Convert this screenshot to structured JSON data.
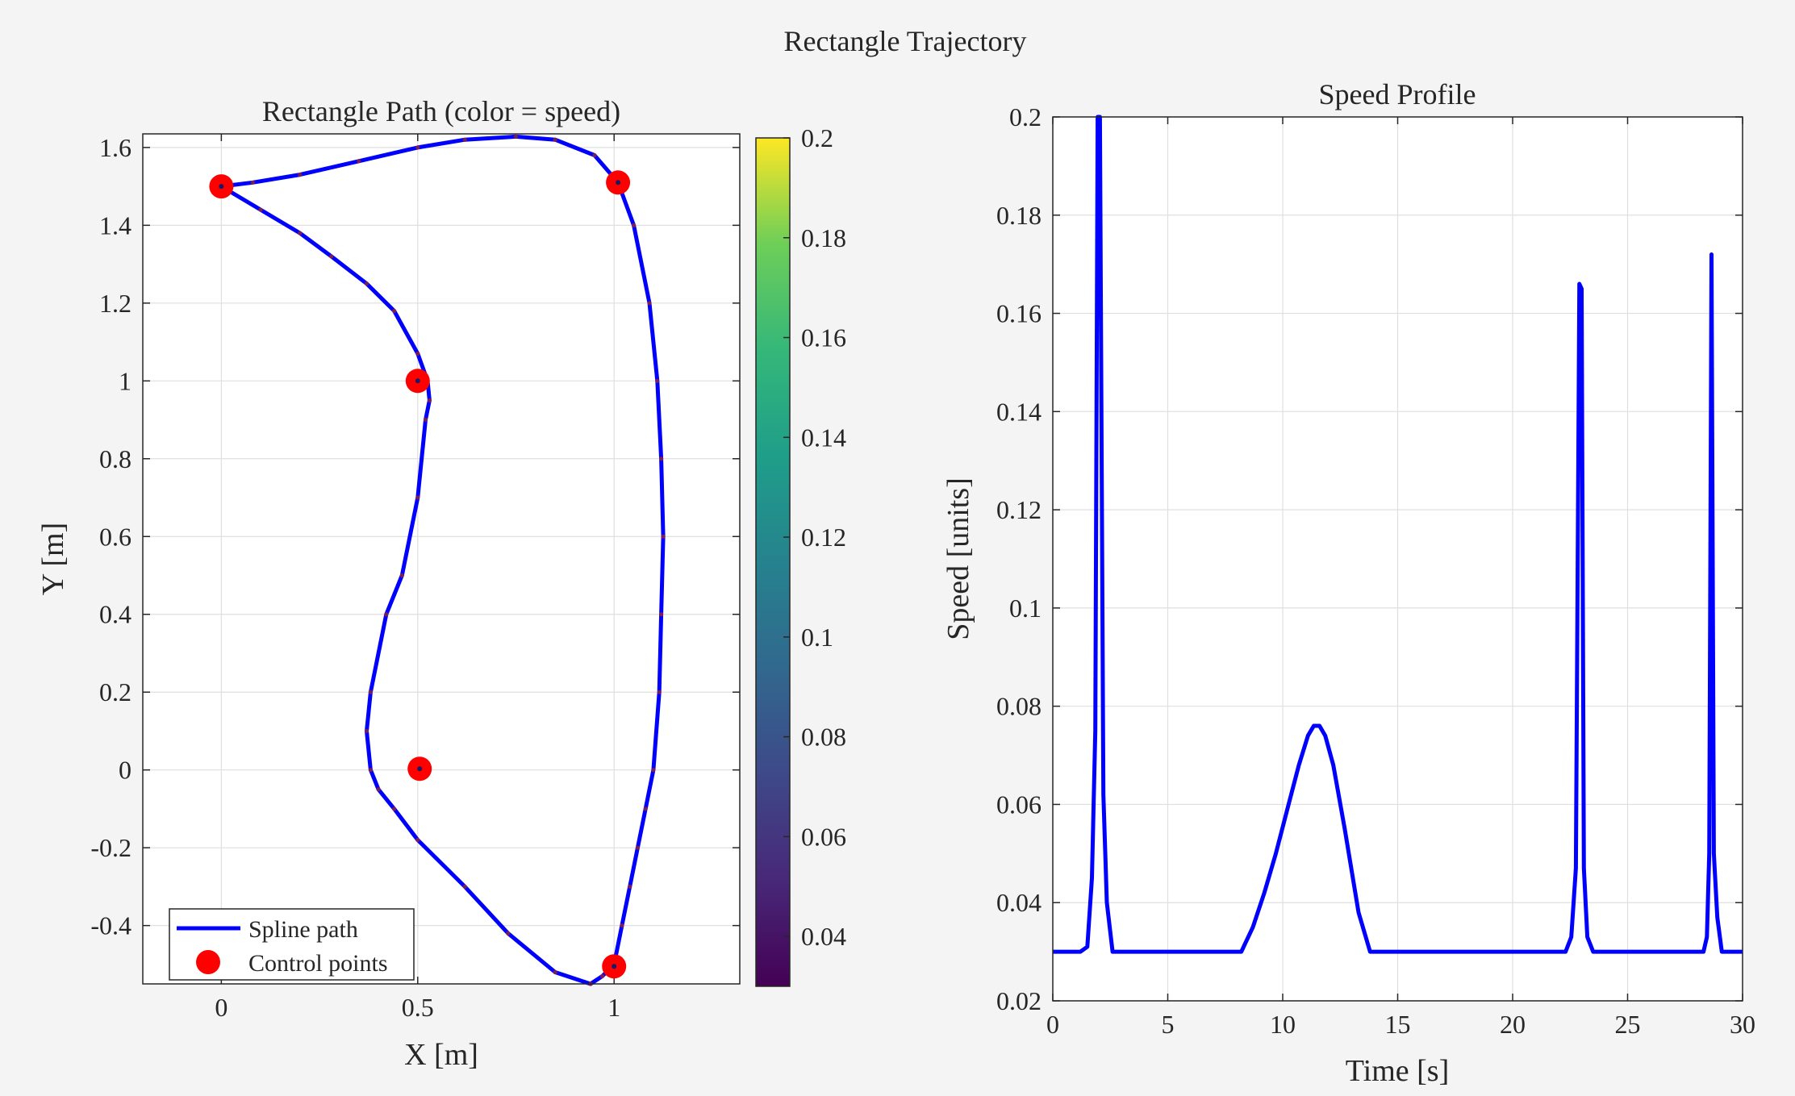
{
  "figure": {
    "title": "Rectangle Trajectory"
  },
  "colors": {
    "background": "#f4f4f4",
    "path_line": "#0000ff",
    "control_points": "#ff0000",
    "grid": "#dfdfdf",
    "axes": "#262626"
  },
  "chart_data": [
    {
      "type": "line",
      "title": "Rectangle Path (color = speed)",
      "xlabel": "X [m]",
      "ylabel": "Y [m]",
      "xlim": [
        -0.2,
        1.32
      ],
      "ylim": [
        -0.55,
        1.635
      ],
      "xticks": [
        0,
        0.5,
        1
      ],
      "xtick_labels": [
        "0",
        "0.5",
        "1"
      ],
      "yticks": [
        -0.4,
        -0.2,
        0,
        0.2,
        0.4,
        0.6,
        0.8,
        1,
        1.2,
        1.4,
        1.6
      ],
      "ytick_labels": [
        "-0.4",
        "-0.2",
        "0",
        "0.2",
        "0.4",
        "0.6",
        "0.8",
        "1",
        "1.2",
        "1.4",
        "1.6"
      ],
      "grid": true,
      "legend": {
        "placement": "bottom-left",
        "entries": [
          "Spline path",
          "Control points"
        ]
      },
      "colorbar": {
        "colormap": "viridis",
        "range": [
          0.03,
          0.2
        ],
        "ticks": [
          0.04,
          0.06,
          0.08,
          0.1,
          0.12,
          0.14,
          0.16,
          0.18,
          0.2
        ],
        "tick_labels": [
          "0.04",
          "0.06",
          "0.08",
          "0.1",
          "0.12",
          "0.14",
          "0.16",
          "0.18",
          "0.2"
        ]
      },
      "series": [
        {
          "name": "Spline path",
          "x": [
            0,
            0.08,
            0.2,
            0.35,
            0.5,
            0.62,
            0.75,
            0.85,
            0.95,
            1.01,
            1.05,
            1.09,
            1.11,
            1.12,
            1.125,
            1.12,
            1.115,
            1.1,
            1.08,
            1.06,
            1.04,
            1.02,
            1.0,
            0.97,
            0.94,
            0.85,
            0.73,
            0.62,
            0.5,
            0.44,
            0.4,
            0.38,
            0.37,
            0.38,
            0.42,
            0.46,
            0.5,
            0.52,
            0.53,
            0.525,
            0.5,
            0.44,
            0.37,
            0.28,
            0.2,
            0.1,
            0
          ],
          "y": [
            1.5,
            1.51,
            1.53,
            1.565,
            1.6,
            1.62,
            1.628,
            1.62,
            1.58,
            1.51,
            1.4,
            1.2,
            1.0,
            0.8,
            0.6,
            0.4,
            0.2,
            0.0,
            -0.1,
            -0.2,
            -0.3,
            -0.4,
            -0.5,
            -0.53,
            -0.55,
            -0.52,
            -0.42,
            -0.3,
            -0.18,
            -0.1,
            -0.05,
            0.0,
            0.1,
            0.2,
            0.4,
            0.5,
            0.7,
            0.9,
            0.95,
            1.0,
            1.07,
            1.18,
            1.25,
            1.32,
            1.38,
            1.44,
            1.5
          ]
        },
        {
          "name": "Control points",
          "x": [
            0,
            1.01,
            0.5,
            0.505,
            1.0
          ],
          "y": [
            1.5,
            1.51,
            1.0,
            0.003,
            -0.505
          ]
        }
      ]
    },
    {
      "type": "line",
      "title": "Speed Profile",
      "xlabel": "Time [s]",
      "ylabel": "Speed [units]",
      "xlim": [
        0,
        30
      ],
      "ylim": [
        0.02,
        0.2
      ],
      "xticks": [
        0,
        5,
        10,
        15,
        20,
        25,
        30
      ],
      "xtick_labels": [
        "0",
        "5",
        "10",
        "15",
        "20",
        "25",
        "30"
      ],
      "yticks": [
        0.02,
        0.04,
        0.06,
        0.08,
        0.1,
        0.12,
        0.14,
        0.16,
        0.18,
        0.2
      ],
      "ytick_labels": [
        "0.02",
        "0.04",
        "0.06",
        "0.08",
        "0.1",
        "0.12",
        "0.14",
        "0.16",
        "0.18",
        "0.2"
      ],
      "grid": true,
      "series": [
        {
          "x": [
            0,
            1.2,
            1.5,
            1.7,
            1.85,
            1.95,
            2.05,
            2.2,
            2.35,
            2.6,
            8.2,
            8.7,
            9.2,
            9.7,
            10.2,
            10.7,
            11.1,
            11.35,
            11.6,
            11.85,
            12.2,
            12.7,
            13.3,
            13.8,
            22.3,
            22.55,
            22.75,
            22.9,
            23.0,
            23.1,
            23.25,
            23.5,
            23.9,
            28.3,
            28.45,
            28.55,
            28.65,
            28.75,
            28.9,
            29.1,
            30
          ],
          "y": [
            0.03,
            0.03,
            0.031,
            0.045,
            0.075,
            0.2,
            0.2,
            0.062,
            0.04,
            0.03,
            0.03,
            0.035,
            0.042,
            0.05,
            0.059,
            0.068,
            0.074,
            0.076,
            0.076,
            0.074,
            0.068,
            0.055,
            0.038,
            0.03,
            0.03,
            0.033,
            0.047,
            0.166,
            0.165,
            0.047,
            0.033,
            0.03,
            0.03,
            0.03,
            0.033,
            0.05,
            0.172,
            0.05,
            0.037,
            0.03,
            0.03
          ]
        }
      ]
    }
  ]
}
